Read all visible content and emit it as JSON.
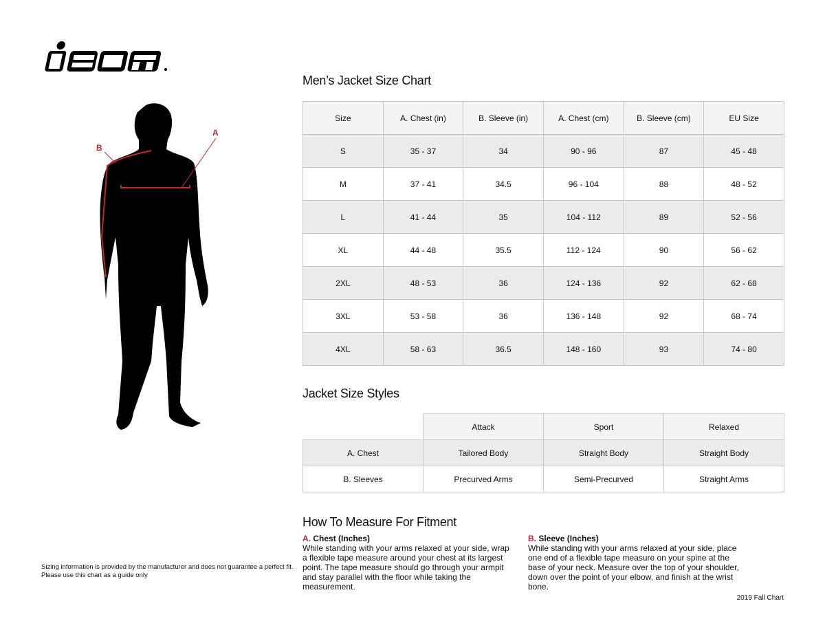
{
  "brand": {
    "logo_text": "ICON"
  },
  "figure": {
    "label_a": "A",
    "label_b": "B",
    "accent_color": "#c0272d"
  },
  "size_chart": {
    "title": "Men’s Jacket Size Chart",
    "headers": [
      "Size",
      "A. Chest (in)",
      "B. Sleeve (in)",
      "A. Chest (cm)",
      "B. Sleeve (cm)",
      "EU Size"
    ],
    "rows": [
      [
        "S",
        "35 - 37",
        "34",
        "90 - 96",
        "87",
        "45 - 48"
      ],
      [
        "M",
        "37 - 41",
        "34.5",
        "96 - 104",
        "88",
        "48 - 52"
      ],
      [
        "L",
        "41 - 44",
        "35",
        "104 - 112",
        "89",
        "52 - 56"
      ],
      [
        "XL",
        "44 - 48",
        "35.5",
        "112 - 124",
        "90",
        "56 - 62"
      ],
      [
        "2XL",
        "48 - 53",
        "36",
        "124 - 136",
        "92",
        "62 - 68"
      ],
      [
        "3XL",
        "53 - 58",
        "36",
        "136 - 148",
        "92",
        "68 - 74"
      ],
      [
        "4XL",
        "58 - 63",
        "36.5",
        "148 - 160",
        "93",
        "74 - 80"
      ]
    ]
  },
  "styles": {
    "title": "Jacket Size Styles",
    "headers": [
      "",
      "Attack",
      "Sport",
      "Relaxed"
    ],
    "rows": [
      [
        "A. Chest",
        "Tailored Body",
        "Straight Body",
        "Straight Body"
      ],
      [
        "B. Sleeves",
        "Precurved Arms",
        "Semi-Precurved",
        "Straight Arms"
      ]
    ]
  },
  "measure": {
    "title": "How To Measure For Fitment",
    "chest": {
      "letter": "A.",
      "title": "Chest (Inches)",
      "text": "While standing with your arms relaxed at your side, wrap a flexible tape measure around your chest at its largest point. The tape measure should go through your armpit and stay parallel with the floor while taking the measurement."
    },
    "sleeve": {
      "letter": "B.",
      "title": "Sleeve (Inches)",
      "text": "While standing with your arms relaxed at your side, place one end of a flexible tape measure on your spine at the base of your neck. Measure over the top of your shoulder, down over the point of your elbow, and finish at the wrist bone."
    }
  },
  "footer": {
    "disclaimer_1": "Sizing information is provided by the manufacturer and does not guarantee a perfect fit.",
    "disclaimer_2": "Please use this chart as a guide only",
    "edition": "2019 Fall Chart"
  }
}
